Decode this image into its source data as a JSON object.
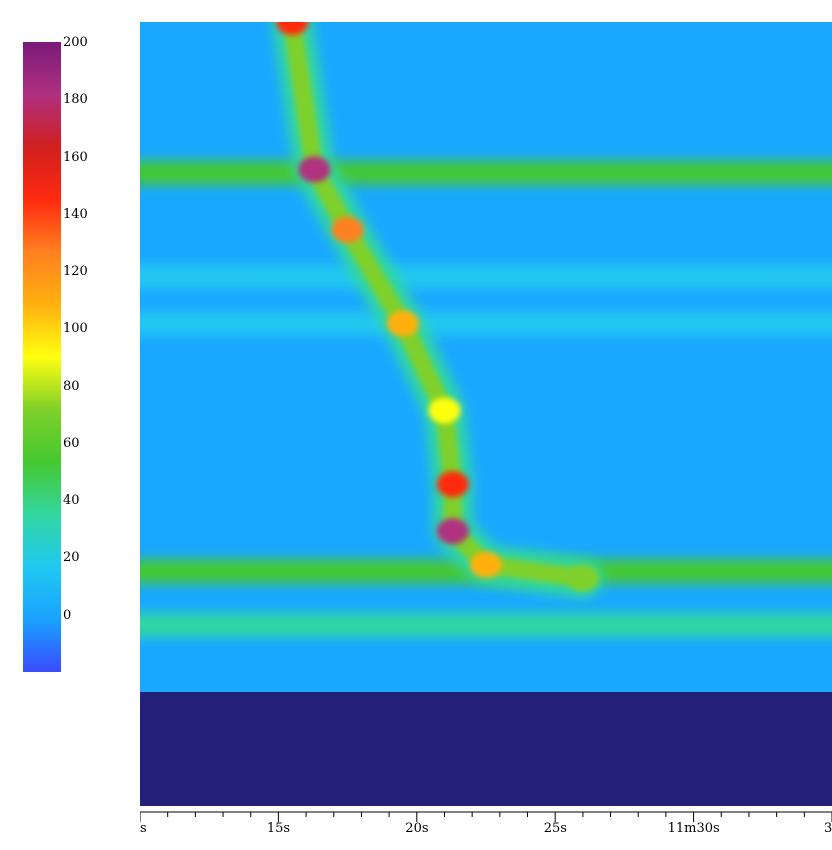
{
  "chart_data": {
    "type": "heatmap",
    "colorbar": {
      "min": -20,
      "max": 200,
      "ticks": [
        200,
        180,
        160,
        140,
        120,
        100,
        80,
        60,
        40,
        20,
        0
      ],
      "colors": [
        "#3a4bff",
        "#1aa2ff",
        "#20c8f0",
        "#33d7a0",
        "#45c830",
        "#7fd02a",
        "#ffff10",
        "#ffb010",
        "#ff8020",
        "#ff2a10",
        "#d02020",
        "#b03080",
        "#7a1a7a"
      ]
    },
    "x_axis": {
      "tick_labels": [
        {
          "label": "s",
          "t": 10
        },
        {
          "label": "15s",
          "t": 15
        },
        {
          "label": "20s",
          "t": 20
        },
        {
          "label": "25s",
          "t": 25
        },
        {
          "label": "11m30s",
          "t": 30
        },
        {
          "label": "3",
          "t": 35
        }
      ],
      "range": [
        10,
        35
      ],
      "minor_step": 1
    },
    "y_range": [
      0,
      1
    ],
    "background_color": "#1aa8ff",
    "mask_color": "#23207a",
    "horizontal_bands": [
      {
        "y": 0.775,
        "level": 60
      },
      {
        "y": 0.62,
        "level": 20
      },
      {
        "y": 0.55,
        "level": 25
      },
      {
        "y": 0.18,
        "level": 45
      },
      {
        "y": 0.1,
        "level": 30
      }
    ],
    "sweep_track": [
      {
        "t": 15.5,
        "y": 1.0,
        "level": 150
      },
      {
        "t": 16.3,
        "y": 0.78,
        "level": 190
      },
      {
        "t": 17.5,
        "y": 0.69,
        "level": 130
      },
      {
        "t": 19.5,
        "y": 0.55,
        "level": 110
      },
      {
        "t": 21.0,
        "y": 0.42,
        "level": 95
      },
      {
        "t": 21.3,
        "y": 0.31,
        "level": 140
      },
      {
        "t": 21.3,
        "y": 0.24,
        "level": 175
      },
      {
        "t": 22.5,
        "y": 0.19,
        "level": 100
      },
      {
        "t": 26.0,
        "y": 0.17,
        "level": 80
      }
    ]
  }
}
